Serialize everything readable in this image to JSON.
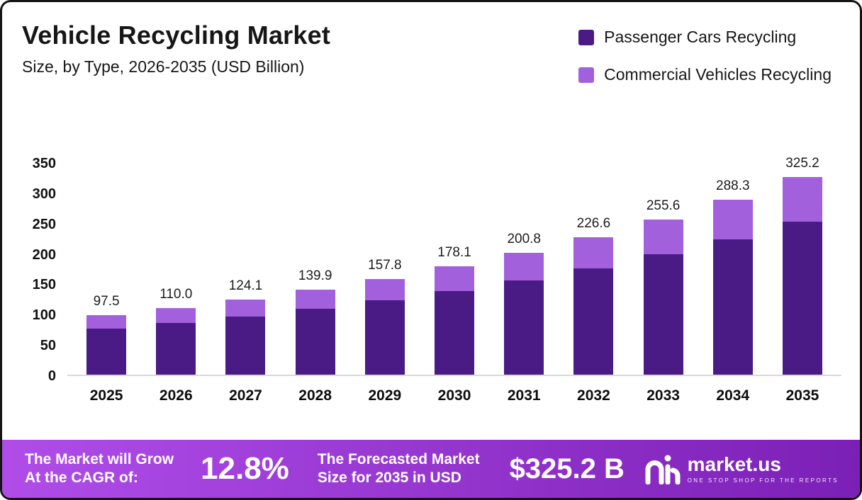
{
  "frame": {
    "border_color": "#141414",
    "corner_accent_color": "#9b3ad6",
    "background": "#ffffff"
  },
  "header": {
    "title": "Vehicle Recycling Market",
    "subtitle": "Size, by Type, 2026-2035 (USD Billion)"
  },
  "legend": [
    {
      "label": "Passenger Cars Recycling",
      "color": "#4a1b85"
    },
    {
      "label": "Commercial Vehicles Recycling",
      "color": "#a260dd"
    }
  ],
  "chart_data": {
    "type": "bar",
    "stacked": true,
    "title": "Vehicle Recycling Market Size, by Type, 2026-2035 (USD Billion)",
    "categories": [
      "2025",
      "2026",
      "2027",
      "2028",
      "2029",
      "2030",
      "2031",
      "2032",
      "2033",
      "2034",
      "2035"
    ],
    "series": [
      {
        "name": "Passenger Cars Recycling",
        "color": "#4a1b85",
        "values": [
          75.5,
          85.3,
          96.2,
          108.4,
          122.3,
          138.0,
          155.6,
          175.6,
          198.1,
          223.4,
          252.0
        ]
      },
      {
        "name": "Commercial Vehicles Recycling",
        "color": "#a260dd",
        "values": [
          22.0,
          24.7,
          27.9,
          31.5,
          35.5,
          40.1,
          45.2,
          51.0,
          57.5,
          64.9,
          73.2
        ]
      }
    ],
    "totals": [
      97.5,
      110.0,
      124.1,
      139.9,
      157.8,
      178.1,
      200.8,
      226.6,
      255.6,
      288.3,
      325.2
    ],
    "total_labels": [
      "97.5",
      "110.0",
      "124.1",
      "139.9",
      "157.8",
      "178.1",
      "200.8",
      "226.6",
      "255.6",
      "288.3",
      "325.2"
    ],
    "xlabel": "",
    "ylabel": "",
    "ylim": [
      0,
      350
    ],
    "yticks": [
      350,
      300,
      250,
      200,
      150,
      100,
      50,
      0
    ],
    "grid": false,
    "legend_position": "top-right"
  },
  "footer": {
    "gradient": [
      "#b04de9",
      "#7b20b6"
    ],
    "cagr_line1": "The Market will Grow",
    "cagr_line2": "At the CAGR of:",
    "cagr_value": "12.8%",
    "forecast_line1": "The Forecasted Market",
    "forecast_line2": "Size for 2035 in USD",
    "forecast_value": "$325.2 B",
    "logo_text": "market.us",
    "logo_tagline": "ONE STOP SHOP FOR THE REPORTS"
  }
}
